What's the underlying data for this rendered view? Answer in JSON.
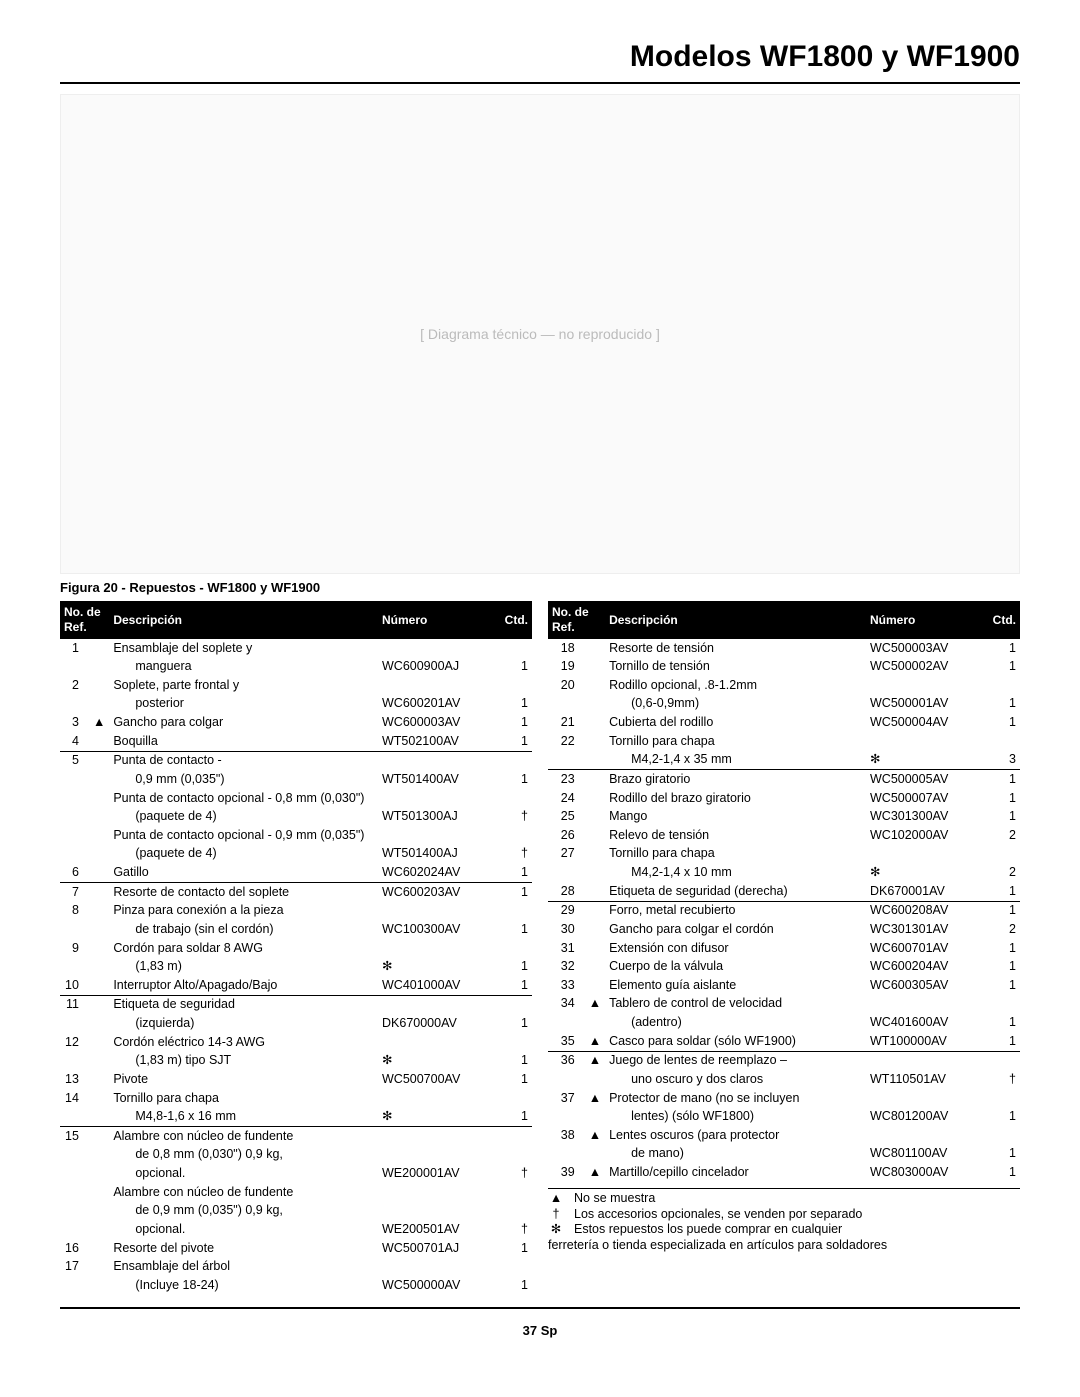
{
  "title": "Modelos WF1800 y WF1900",
  "figure_placeholder": "[ Diagrama técnico — no reproducido ]",
  "figure_caption": "Figura 20 - Repuestos - WF1800 y WF1900",
  "page_number": "37 Sp",
  "header": {
    "ref_line1": "No. de",
    "ref_line2": "Ref.",
    "desc": "Descripción",
    "num": "Número",
    "ctd": "Ctd."
  },
  "left_rows": [
    {
      "ref": "1",
      "sym": "",
      "desc": "Ensamblaje del soplete y"
    },
    {
      "ref": "",
      "sym": "",
      "desc": "<span class='indent'>manguera</span>",
      "num": "WC600900AJ",
      "ctd": "1"
    },
    {
      "ref": "2",
      "sym": "",
      "desc": "Soplete, parte frontal y"
    },
    {
      "ref": "",
      "sym": "",
      "desc": "<span class='indent'>posterior</span>",
      "num": "WC600201AV",
      "ctd": "1"
    },
    {
      "ref": "3",
      "sym": "▲",
      "desc": "Gancho para colgar",
      "num": "WC600003AV",
      "ctd": "1"
    },
    {
      "ref": "4",
      "sym": "",
      "desc": "Boquilla",
      "num": "WT502100AV",
      "ctd": "1"
    },
    {
      "sep": true,
      "ref": "5",
      "sym": "",
      "desc": "Punta de contacto -"
    },
    {
      "ref": "",
      "sym": "",
      "desc": "<span class='indent'>0,9 mm (0,035\")</span>",
      "num": "WT501400AV",
      "ctd": "1"
    },
    {
      "ref": "",
      "sym": "",
      "desc": "Punta de contacto opcional - 0,8 mm (0,030\")"
    },
    {
      "ref": "",
      "sym": "",
      "desc": "<span class='indent'>(paquete de 4)</span>",
      "num": "WT501300AJ",
      "ctd": "†"
    },
    {
      "ref": "",
      "sym": "",
      "desc": "Punta de contacto opcional - 0,9 mm (0,035\")"
    },
    {
      "ref": "",
      "sym": "",
      "desc": "<span class='indent'>(paquete de 4)</span>",
      "num": "WT501400AJ",
      "ctd": "†"
    },
    {
      "ref": "6",
      "sym": "",
      "desc": "Gatillo",
      "num": "WC602024AV",
      "ctd": "1"
    },
    {
      "sep": true,
      "ref": "7",
      "sym": "",
      "desc": "Resorte de contacto del soplete",
      "num": "WC600203AV",
      "ctd": "1"
    },
    {
      "ref": "8",
      "sym": "",
      "desc": "Pinza para conexión a la pieza"
    },
    {
      "ref": "",
      "sym": "",
      "desc": "<span class='indent'>de trabajo (sin el cordón)</span>",
      "num": "WC100300AV",
      "ctd": "1"
    },
    {
      "ref": "9",
      "sym": "",
      "desc": "Cordón para soldar 8 AWG"
    },
    {
      "ref": "",
      "sym": "",
      "desc": "<span class='indent'>(1,83 m)</span>",
      "num": "✻",
      "ctd": "1"
    },
    {
      "ref": "10",
      "sym": "",
      "desc": "Interruptor Alto/Apagado/Bajo",
      "num": "WC401000AV",
      "ctd": "1"
    },
    {
      "sep": true,
      "ref": "11",
      "sym": "",
      "desc": "Etiqueta de seguridad"
    },
    {
      "ref": "",
      "sym": "",
      "desc": "<span class='indent'>(izquierda)</span>",
      "num": "DK670000AV",
      "ctd": "1"
    },
    {
      "ref": "12",
      "sym": "",
      "desc": "Cordón eléctrico 14-3 AWG"
    },
    {
      "ref": "",
      "sym": "",
      "desc": "<span class='indent'>(1,83 m) tipo SJT</span>",
      "num": "✻",
      "ctd": "1"
    },
    {
      "ref": "13",
      "sym": "",
      "desc": "Pivote",
      "num": "WC500700AV",
      "ctd": "1"
    },
    {
      "ref": "14",
      "sym": "",
      "desc": "Tornillo para chapa"
    },
    {
      "ref": "",
      "sym": "",
      "desc": "<span class='indent'>M4,8-1,6 x 16 mm</span>",
      "num": "✻",
      "ctd": "1"
    },
    {
      "sep": true,
      "ref": "15",
      "sym": "",
      "desc": "Alambre con núcleo de fundente"
    },
    {
      "ref": "",
      "sym": "",
      "desc": "<span class='indent'>de 0,8 mm (0,030\") 0,9 kg,</span>"
    },
    {
      "ref": "",
      "sym": "",
      "desc": "<span class='indent'>opcional.</span>",
      "num": "WE200001AV",
      "ctd": "†"
    },
    {
      "ref": "",
      "sym": "",
      "desc": "Alambre con núcleo de fundente"
    },
    {
      "ref": "",
      "sym": "",
      "desc": "<span class='indent'>de 0,9 mm (0,035\") 0,9 kg,</span>"
    },
    {
      "ref": "",
      "sym": "",
      "desc": "<span class='indent'>opcional.</span>",
      "num": "WE200501AV",
      "ctd": "†"
    },
    {
      "ref": "16",
      "sym": "",
      "desc": "Resorte del pivote",
      "num": "WC500701AJ",
      "ctd": "1"
    },
    {
      "ref": "17",
      "sym": "",
      "desc": "Ensamblaje del árbol"
    },
    {
      "ref": "",
      "sym": "",
      "desc": "<span class='indent'>(Incluye 18-24)</span>",
      "num": "WC500000AV",
      "ctd": "1"
    }
  ],
  "right_rows": [
    {
      "ref": "18",
      "sym": "",
      "desc": "Resorte de tensión",
      "num": "WC500003AV",
      "ctd": "1"
    },
    {
      "ref": "19",
      "sym": "",
      "desc": "Tornillo de tensión",
      "num": "WC500002AV",
      "ctd": "1"
    },
    {
      "ref": "20",
      "sym": "",
      "desc": "Rodillo opcional, .8-1.2mm"
    },
    {
      "ref": "",
      "sym": "",
      "desc": "<span class='indent'>(0,6-0,9mm)</span>",
      "num": "WC500001AV",
      "ctd": "1"
    },
    {
      "ref": "21",
      "sym": "",
      "desc": "Cubierta del rodillo",
      "num": "WC500004AV",
      "ctd": "1"
    },
    {
      "ref": "22",
      "sym": "",
      "desc": "Tornillo para chapa"
    },
    {
      "ref": "",
      "sym": "",
      "desc": "<span class='indent'>M4,2-1,4 x 35 mm</span>",
      "num": "✻",
      "ctd": "3"
    },
    {
      "sep": true,
      "ref": "23",
      "sym": "",
      "desc": "Brazo giratorio",
      "num": "WC500005AV",
      "ctd": "1"
    },
    {
      "ref": "24",
      "sym": "",
      "desc": "Rodillo del brazo giratorio",
      "num": "WC500007AV",
      "ctd": "1"
    },
    {
      "ref": "25",
      "sym": "",
      "desc": "Mango",
      "num": "WC301300AV",
      "ctd": "1"
    },
    {
      "ref": "26",
      "sym": "",
      "desc": "Relevo de tensión",
      "num": "WC102000AV",
      "ctd": "2"
    },
    {
      "ref": "27",
      "sym": "",
      "desc": "Tornillo para chapa"
    },
    {
      "ref": "",
      "sym": "",
      "desc": "<span class='indent'>M4,2-1,4 x 10 mm</span>",
      "num": "✻",
      "ctd": "2"
    },
    {
      "ref": "28",
      "sym": "",
      "desc": "Etiqueta de seguridad (derecha)",
      "num": "DK670001AV",
      "ctd": "1"
    },
    {
      "sep": true,
      "ref": "29",
      "sym": "",
      "desc": "Forro, metal recubierto",
      "num": "WC600208AV",
      "ctd": "1"
    },
    {
      "ref": "30",
      "sym": "",
      "desc": "Gancho para colgar el cordón",
      "num": "WC301301AV",
      "ctd": "2"
    },
    {
      "ref": "31",
      "sym": "",
      "desc": "Extensión con difusor",
      "num": "WC600701AV",
      "ctd": "1"
    },
    {
      "ref": "32",
      "sym": "",
      "desc": "Cuerpo de la válvula",
      "num": "WC600204AV",
      "ctd": "1"
    },
    {
      "ref": "33",
      "sym": "",
      "desc": "Elemento guía aislante",
      "num": "WC600305AV",
      "ctd": "1"
    },
    {
      "ref": "34",
      "sym": "▲",
      "desc": "Tablero de control de velocidad"
    },
    {
      "ref": "",
      "sym": "",
      "desc": "<span class='indent'>(adentro)</span>",
      "num": "WC401600AV",
      "ctd": "1"
    },
    {
      "ref": "35",
      "sym": "▲",
      "desc": "Casco para soldar (sólo WF1900)",
      "num": "WT100000AV",
      "ctd": "1"
    },
    {
      "sep": true,
      "ref": "36",
      "sym": "▲",
      "desc": "Juego de lentes de reemplazo –"
    },
    {
      "ref": "",
      "sym": "",
      "desc": "<span class='indent'>uno oscuro y dos claros</span>",
      "num": "WT110501AV",
      "ctd": "†"
    },
    {
      "ref": "37",
      "sym": "▲",
      "desc": "Protector de mano (no se incluyen"
    },
    {
      "ref": "",
      "sym": "",
      "desc": "<span class='indent'>lentes) (sólo WF1800)</span>",
      "num": "WC801200AV",
      "ctd": "1"
    },
    {
      "ref": "38",
      "sym": "▲",
      "desc": "Lentes oscuros (para protector"
    },
    {
      "ref": "",
      "sym": "",
      "desc": "<span class='indent'>de mano)</span>",
      "num": "WC801100AV",
      "ctd": "1"
    },
    {
      "ref": "39",
      "sym": "▲",
      "desc": "Martillo/cepillo cincelador",
      "num": "WC803000AV",
      "ctd": "1"
    }
  ],
  "footnotes": [
    {
      "mark": "▲",
      "text": "No se muestra"
    },
    {
      "mark": "†",
      "text": "Los accesorios opcionales, se venden por separado"
    },
    {
      "mark": "✻",
      "text": "Estos repuestos los puede comprar en cualquier"
    }
  ],
  "footnote_tail": "ferretería o tienda especializada en artículos para soldadores"
}
